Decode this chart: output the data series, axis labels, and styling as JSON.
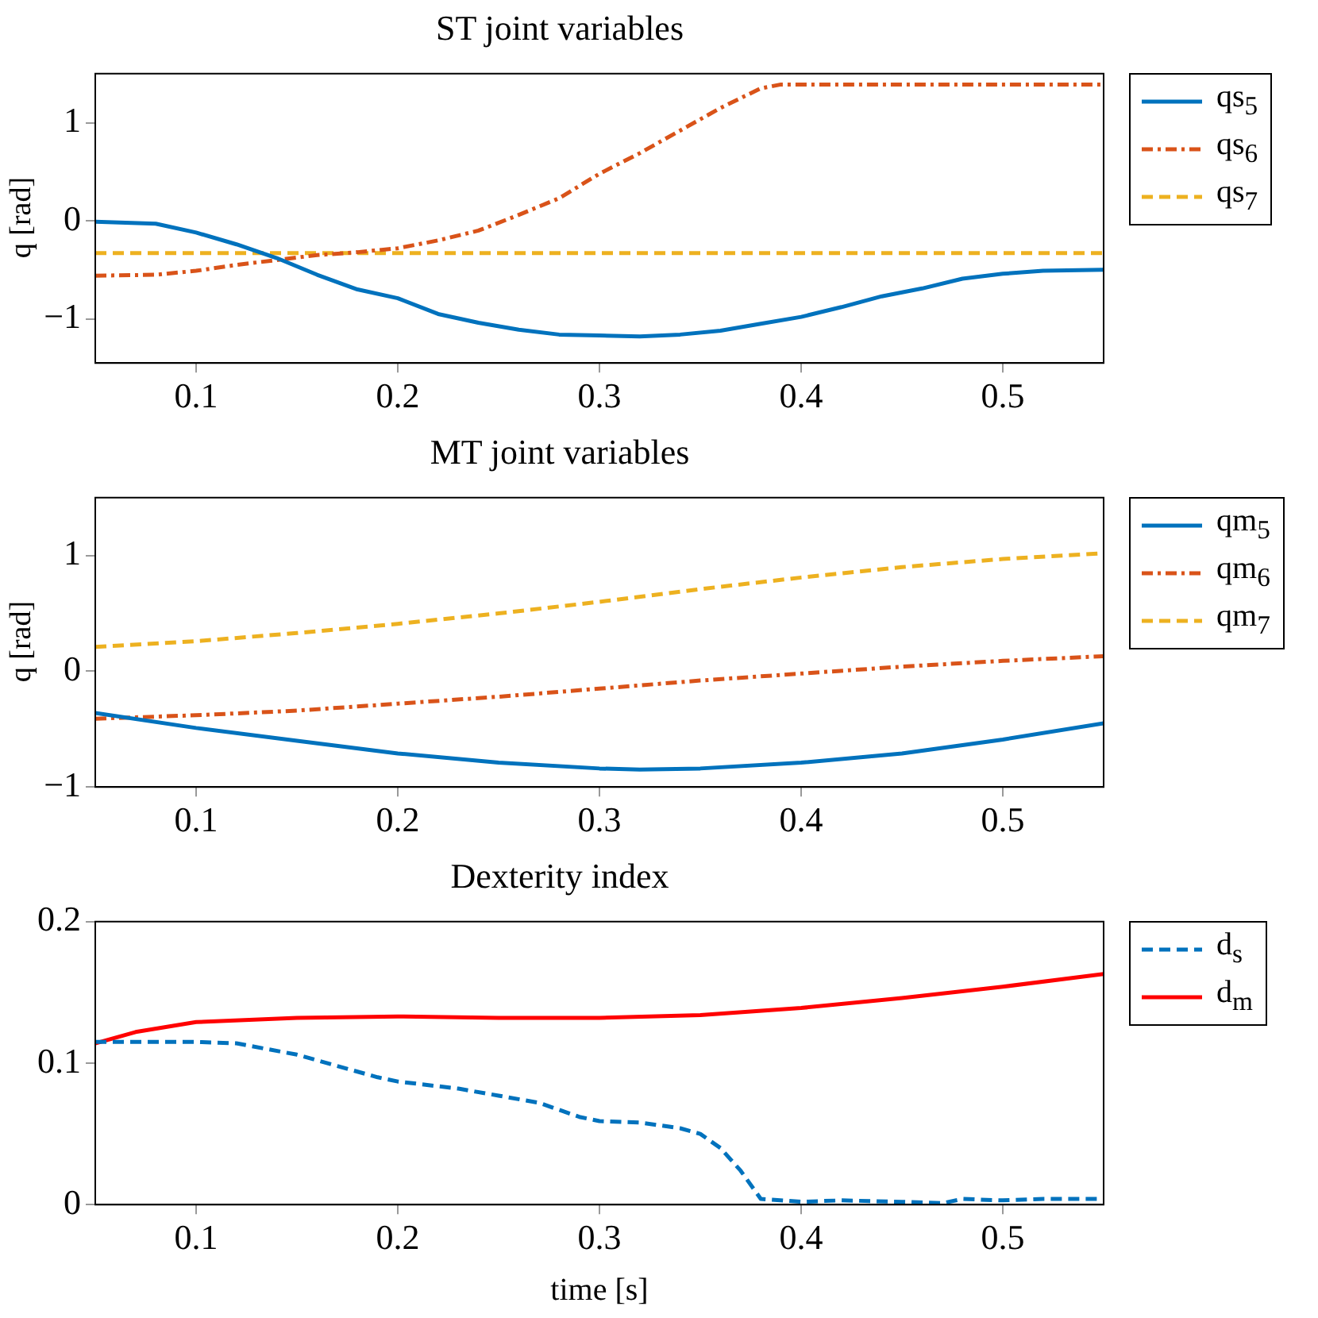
{
  "chart_data": [
    {
      "type": "line",
      "title": "ST joint variables",
      "ylabel": "q [rad]",
      "xlim": [
        0.05,
        0.55
      ],
      "xticks": [
        0.1,
        0.2,
        0.3,
        0.4,
        0.5
      ],
      "ylim": [
        -1.45,
        1.5
      ],
      "yticks": [
        -1,
        0,
        1
      ],
      "legend": "right",
      "series": [
        {
          "name": "qs$_{5}$",
          "color": "#0072bd",
          "line_style": "solid",
          "x": [
            0.05,
            0.08,
            0.1,
            0.12,
            0.14,
            0.16,
            0.18,
            0.2,
            0.22,
            0.24,
            0.26,
            0.28,
            0.3,
            0.32,
            0.34,
            0.36,
            0.38,
            0.4,
            0.42,
            0.44,
            0.46,
            0.48,
            0.5,
            0.52,
            0.55
          ],
          "values": [
            -0.01,
            -0.03,
            -0.12,
            -0.24,
            -0.38,
            -0.55,
            -0.7,
            -0.79,
            -0.95,
            -1.04,
            -1.11,
            -1.16,
            -1.17,
            -1.18,
            -1.16,
            -1.12,
            -1.05,
            -0.98,
            -0.88,
            -0.77,
            -0.69,
            -0.59,
            -0.54,
            -0.51,
            -0.5
          ]
        },
        {
          "name": "qs$_{6}$",
          "color": "#d95319",
          "line_style": "dashdot",
          "x": [
            0.05,
            0.08,
            0.1,
            0.12,
            0.14,
            0.16,
            0.18,
            0.2,
            0.22,
            0.24,
            0.26,
            0.28,
            0.3,
            0.32,
            0.34,
            0.36,
            0.38,
            0.39,
            0.55
          ],
          "values": [
            -0.56,
            -0.55,
            -0.51,
            -0.45,
            -0.4,
            -0.35,
            -0.32,
            -0.28,
            -0.2,
            -0.1,
            0.06,
            0.23,
            0.48,
            0.69,
            0.92,
            1.15,
            1.35,
            1.39,
            1.39
          ]
        },
        {
          "name": "qs$_{7}$",
          "color": "#edb120",
          "line_style": "dashed",
          "x": [
            0.05,
            0.55
          ],
          "values": [
            -0.33,
            -0.33
          ]
        }
      ]
    },
    {
      "type": "line",
      "title": "MT joint variables",
      "ylabel": "q [rad]",
      "xlim": [
        0.05,
        0.55
      ],
      "xticks": [
        0.1,
        0.2,
        0.3,
        0.4,
        0.5
      ],
      "ylim": [
        -1,
        1.5
      ],
      "yticks": [
        -1,
        0,
        1
      ],
      "legend": "right",
      "series": [
        {
          "name": "qm$_{5}$",
          "color": "#0072bd",
          "line_style": "solid",
          "x": [
            0.05,
            0.1,
            0.15,
            0.2,
            0.25,
            0.3,
            0.32,
            0.35,
            0.4,
            0.45,
            0.5,
            0.55
          ],
          "values": [
            -0.36,
            -0.49,
            -0.6,
            -0.71,
            -0.79,
            -0.84,
            -0.85,
            -0.84,
            -0.79,
            -0.71,
            -0.59,
            -0.45
          ]
        },
        {
          "name": "qm$_{6}$",
          "color": "#d95319",
          "line_style": "dashdot",
          "x": [
            0.05,
            0.1,
            0.15,
            0.2,
            0.25,
            0.3,
            0.35,
            0.4,
            0.45,
            0.5,
            0.55
          ],
          "values": [
            -0.41,
            -0.38,
            -0.34,
            -0.28,
            -0.22,
            -0.15,
            -0.08,
            -0.02,
            0.04,
            0.09,
            0.13
          ]
        },
        {
          "name": "qm$_{7}$",
          "color": "#edb120",
          "line_style": "dashed",
          "x": [
            0.05,
            0.1,
            0.15,
            0.2,
            0.25,
            0.3,
            0.35,
            0.4,
            0.45,
            0.5,
            0.55
          ],
          "values": [
            0.21,
            0.26,
            0.33,
            0.41,
            0.5,
            0.6,
            0.71,
            0.81,
            0.9,
            0.97,
            1.02
          ]
        }
      ]
    },
    {
      "type": "line",
      "title": "Dexterity index",
      "xlabel": "time [s]",
      "xlim": [
        0.05,
        0.55
      ],
      "xticks": [
        0.1,
        0.2,
        0.3,
        0.4,
        0.5
      ],
      "ylim": [
        0,
        0.2
      ],
      "yticks": [
        0,
        0.1,
        0.2
      ],
      "legend": "right",
      "series": [
        {
          "name": "d$_{s}$",
          "color": "#0072bd",
          "line_style": "dashed",
          "x": [
            0.05,
            0.08,
            0.1,
            0.12,
            0.15,
            0.17,
            0.19,
            0.2,
            0.23,
            0.25,
            0.27,
            0.29,
            0.3,
            0.32,
            0.34,
            0.35,
            0.36,
            0.37,
            0.38,
            0.4,
            0.42,
            0.45,
            0.47,
            0.48,
            0.5,
            0.52,
            0.55
          ],
          "values": [
            0.115,
            0.115,
            0.115,
            0.114,
            0.106,
            0.098,
            0.09,
            0.087,
            0.082,
            0.077,
            0.072,
            0.062,
            0.059,
            0.058,
            0.054,
            0.05,
            0.04,
            0.024,
            0.004,
            0.002,
            0.003,
            0.002,
            0.001,
            0.004,
            0.003,
            0.004,
            0.004
          ]
        },
        {
          "name": "d$_{m}$",
          "color": "#ff0000",
          "line_style": "solid",
          "x": [
            0.05,
            0.07,
            0.1,
            0.15,
            0.2,
            0.25,
            0.3,
            0.35,
            0.4,
            0.45,
            0.5,
            0.55
          ],
          "values": [
            0.114,
            0.122,
            0.129,
            0.132,
            0.133,
            0.132,
            0.132,
            0.134,
            0.139,
            0.146,
            0.154,
            0.163
          ]
        }
      ]
    }
  ]
}
